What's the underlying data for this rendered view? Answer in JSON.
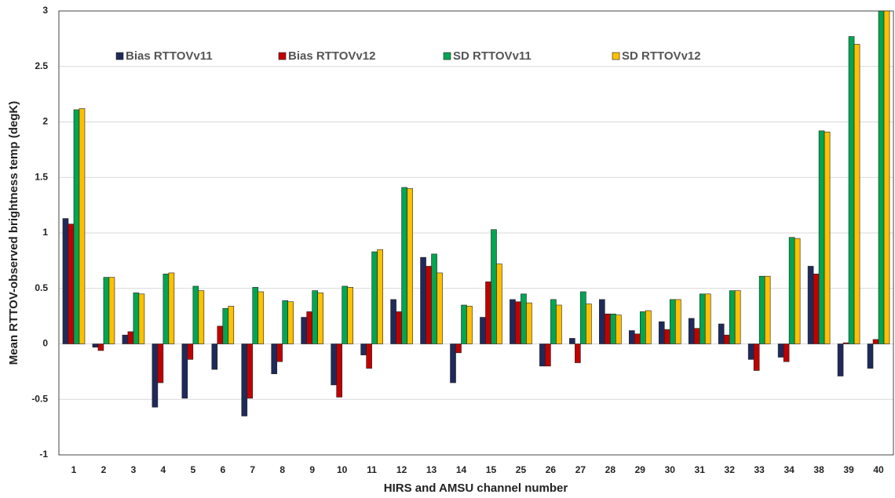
{
  "chart_data": {
    "type": "bar",
    "x_label": "HIRS and AMSU channel number",
    "y_label": "Mean RTTOV-observed brightness temp (degK)",
    "categories": [
      "1",
      "2",
      "3",
      "4",
      "5",
      "6",
      "7",
      "8",
      "9",
      "10",
      "11",
      "12",
      "13",
      "14",
      "15",
      "25",
      "26",
      "27",
      "28",
      "29",
      "30",
      "31",
      "32",
      "33",
      "34",
      "38",
      "39",
      "40"
    ],
    "series": [
      {
        "name": "Bias RTTOVv11",
        "color": "#1f2a5a",
        "values": [
          1.13,
          -0.03,
          0.08,
          -0.57,
          -0.49,
          -0.23,
          -0.65,
          -0.27,
          0.24,
          -0.37,
          -0.1,
          0.4,
          0.78,
          -0.35,
          0.24,
          0.4,
          -0.2,
          0.05,
          0.4,
          0.12,
          0.2,
          0.23,
          0.18,
          -0.14,
          -0.12,
          0.7,
          -0.29,
          -0.22
        ]
      },
      {
        "name": "Bias RTTOVv12",
        "color": "#c00000",
        "values": [
          1.08,
          -0.06,
          0.11,
          -0.35,
          -0.14,
          0.16,
          -0.49,
          -0.16,
          0.29,
          -0.48,
          -0.22,
          0.29,
          0.7,
          -0.08,
          0.56,
          0.38,
          -0.2,
          -0.17,
          0.27,
          0.09,
          0.13,
          0.14,
          0.08,
          -0.24,
          -0.16,
          0.63,
          0.01,
          0.04
        ]
      },
      {
        "name": "SD RTTOVv11",
        "color": "#00a651",
        "values": [
          2.11,
          0.6,
          0.46,
          0.63,
          0.52,
          0.32,
          0.51,
          0.39,
          0.48,
          0.52,
          0.83,
          1.41,
          0.81,
          0.35,
          1.03,
          0.45,
          0.4,
          0.47,
          0.27,
          0.29,
          0.4,
          0.45,
          0.48,
          0.61,
          0.96,
          1.92,
          2.77,
          3.0
        ]
      },
      {
        "name": "SD RTTOVv12",
        "color": "#ffc000",
        "values": [
          2.12,
          0.6,
          0.45,
          0.64,
          0.48,
          0.34,
          0.47,
          0.38,
          0.46,
          0.51,
          0.85,
          1.4,
          0.64,
          0.34,
          0.72,
          0.37,
          0.35,
          0.36,
          0.26,
          0.3,
          0.4,
          0.45,
          0.48,
          0.61,
          0.95,
          1.91,
          2.7,
          3.0
        ]
      }
    ],
    "ylim": [
      -1,
      3
    ],
    "yticks": [
      -1,
      -0.5,
      0,
      0.5,
      1,
      1.5,
      2,
      2.5,
      3
    ],
    "grid": true,
    "legend": "top"
  }
}
